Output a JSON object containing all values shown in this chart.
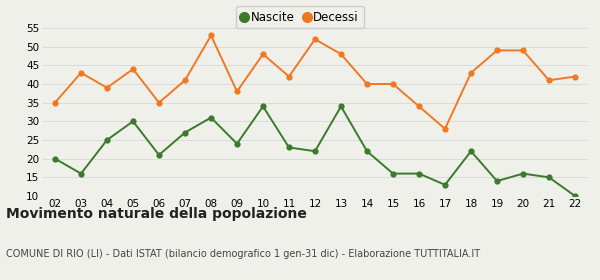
{
  "years": [
    "02",
    "03",
    "04",
    "05",
    "06",
    "07",
    "08",
    "09",
    "10",
    "11",
    "12",
    "13",
    "14",
    "15",
    "16",
    "17",
    "18",
    "19",
    "20",
    "21",
    "22"
  ],
  "nascite": [
    20,
    16,
    25,
    30,
    21,
    27,
    31,
    24,
    34,
    23,
    22,
    34,
    22,
    16,
    16,
    13,
    22,
    14,
    16,
    15,
    10
  ],
  "decessi": [
    35,
    43,
    39,
    44,
    35,
    41,
    53,
    38,
    48,
    42,
    52,
    48,
    40,
    40,
    34,
    28,
    43,
    49,
    49,
    41,
    42
  ],
  "nascite_color": "#3a7a2a",
  "decessi_color": "#f07820",
  "ylim": [
    10,
    55
  ],
  "yticks": [
    10,
    15,
    20,
    25,
    30,
    35,
    40,
    45,
    50,
    55
  ],
  "title": "Movimento naturale della popolazione",
  "subtitle": "COMUNE DI RIO (LI) - Dati ISTAT (bilancio demografico 1 gen-31 dic) - Elaborazione TUTTITALIA.IT",
  "legend_nascite": "Nascite",
  "legend_decessi": "Decessi",
  "bg_color": "#f0f0eb",
  "grid_color": "#d8d8d8",
  "title_fontsize": 10,
  "subtitle_fontsize": 7,
  "tick_fontsize": 7.5,
  "legend_fontsize": 8.5,
  "linewidth": 1.4,
  "markersize": 4.5
}
